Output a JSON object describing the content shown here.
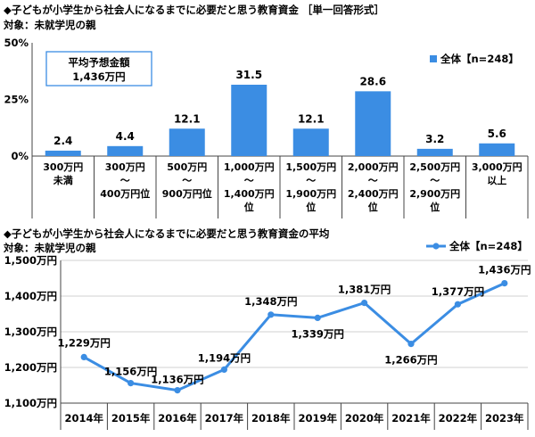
{
  "chart_data": [
    {
      "type": "bar",
      "title": "◆子どもが小学生から社会人になるまでに必要だと思う教育資金 ［単一回答形式］",
      "subtitle": "対象：未就学児の親",
      "categories": [
        [
          "300万円",
          "未満"
        ],
        [
          "300万円",
          "～",
          "400万円位"
        ],
        [
          "500万円",
          "～",
          "900万円位"
        ],
        [
          "1,000万円",
          "～",
          "1,400万円",
          "位"
        ],
        [
          "1,500万円",
          "～",
          "1,900万円",
          "位"
        ],
        [
          "2,000万円",
          "～",
          "2,400万円",
          "位"
        ],
        [
          "2,500万円",
          "～",
          "2,900万円",
          "位"
        ],
        [
          "3,000万円",
          "以上"
        ]
      ],
      "series": [
        {
          "name": "全体【n=248】",
          "values": [
            2.4,
            4.4,
            12.1,
            31.5,
            12.1,
            28.6,
            3.2,
            5.6
          ]
        }
      ],
      "value_labels": [
        "2.4",
        "4.4",
        "12.1",
        "31.5",
        "12.1",
        "28.6",
        "3.2",
        "5.6"
      ],
      "y_ticks": [
        "0%",
        "25%",
        "50%"
      ],
      "ylim": [
        0,
        50
      ],
      "legend_position": "top-right",
      "annotation": {
        "label": "平均予想金額",
        "value": "1,436万円"
      },
      "color": "#3b8de3"
    },
    {
      "type": "line",
      "title": "◆子どもが小学生から社会人になるまでに必要だと思う教育資金の平均",
      "subtitle": "対象：未就学児の親",
      "categories": [
        "2014年",
        "2015年",
        "2016年",
        "2017年",
        "2018年",
        "2019年",
        "2020年",
        "2021年",
        "2022年",
        "2023年"
      ],
      "series": [
        {
          "name": "全体【n=248】",
          "values": [
            1229,
            1156,
            1136,
            1194,
            1348,
            1339,
            1381,
            1266,
            1377,
            1436
          ]
        }
      ],
      "value_labels": [
        "1,229万円",
        "1,156万円",
        "1,136万円",
        "1,194万円",
        "1,348万円",
        "1,339万円",
        "1,381万円",
        "1,266万円",
        "1,377万円",
        "1,436万円"
      ],
      "y_ticks": [
        "1,100万円",
        "1,200万円",
        "1,300万円",
        "1,400万円",
        "1,500万円"
      ],
      "ylim": [
        1100,
        1500
      ],
      "legend_position": "top-right",
      "color": "#3b8de3"
    }
  ]
}
